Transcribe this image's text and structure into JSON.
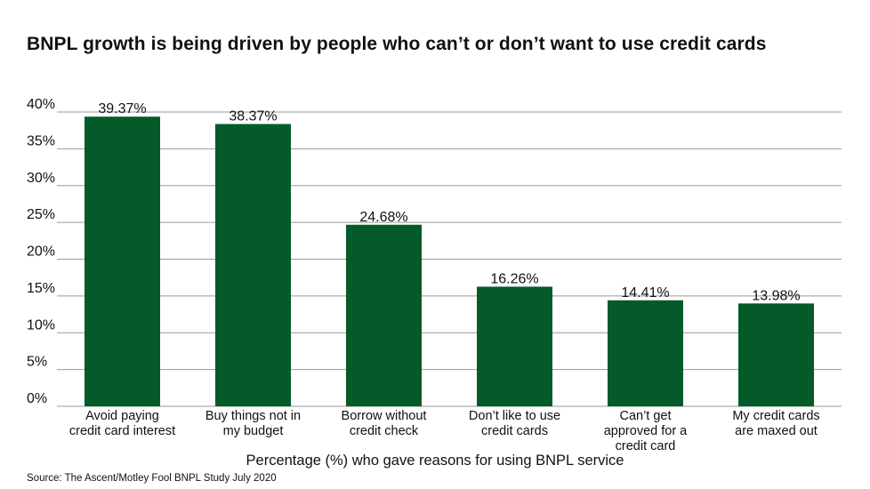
{
  "chart_data": {
    "type": "bar",
    "title": "BNPL growth is being driven by people who can’t or don’t want to use credit cards",
    "xlabel": "Percentage (%) who gave reasons for using BNPL service",
    "ylabel": "",
    "source": "Source: The Ascent/Motley Fool BNPL Study July 2020",
    "categories": [
      [
        "Avoid paying",
        "credit card interest"
      ],
      [
        "Buy things not in",
        "my budget"
      ],
      [
        "Borrow without",
        "credit check"
      ],
      [
        "Don’t like to use",
        "credit cards"
      ],
      [
        "Can’t get",
        "approved for a",
        "credit card"
      ],
      [
        "My credit cards",
        "are maxed out"
      ]
    ],
    "values": [
      39.37,
      38.37,
      24.68,
      16.26,
      14.41,
      13.98
    ],
    "value_labels": [
      "39.37%",
      "38.37%",
      "24.68%",
      "16.26%",
      "14.41%",
      "13.98%"
    ],
    "ylim": [
      0,
      40
    ],
    "yticks": [
      0,
      5,
      10,
      15,
      20,
      25,
      30,
      35,
      40
    ],
    "ytick_labels": [
      "0%",
      "5%",
      "10%",
      "15%",
      "20%",
      "25%",
      "30%",
      "35%",
      "40%"
    ],
    "grid": true,
    "legend": "none",
    "bar_color": "#055a29",
    "grid_color": "#999999"
  }
}
